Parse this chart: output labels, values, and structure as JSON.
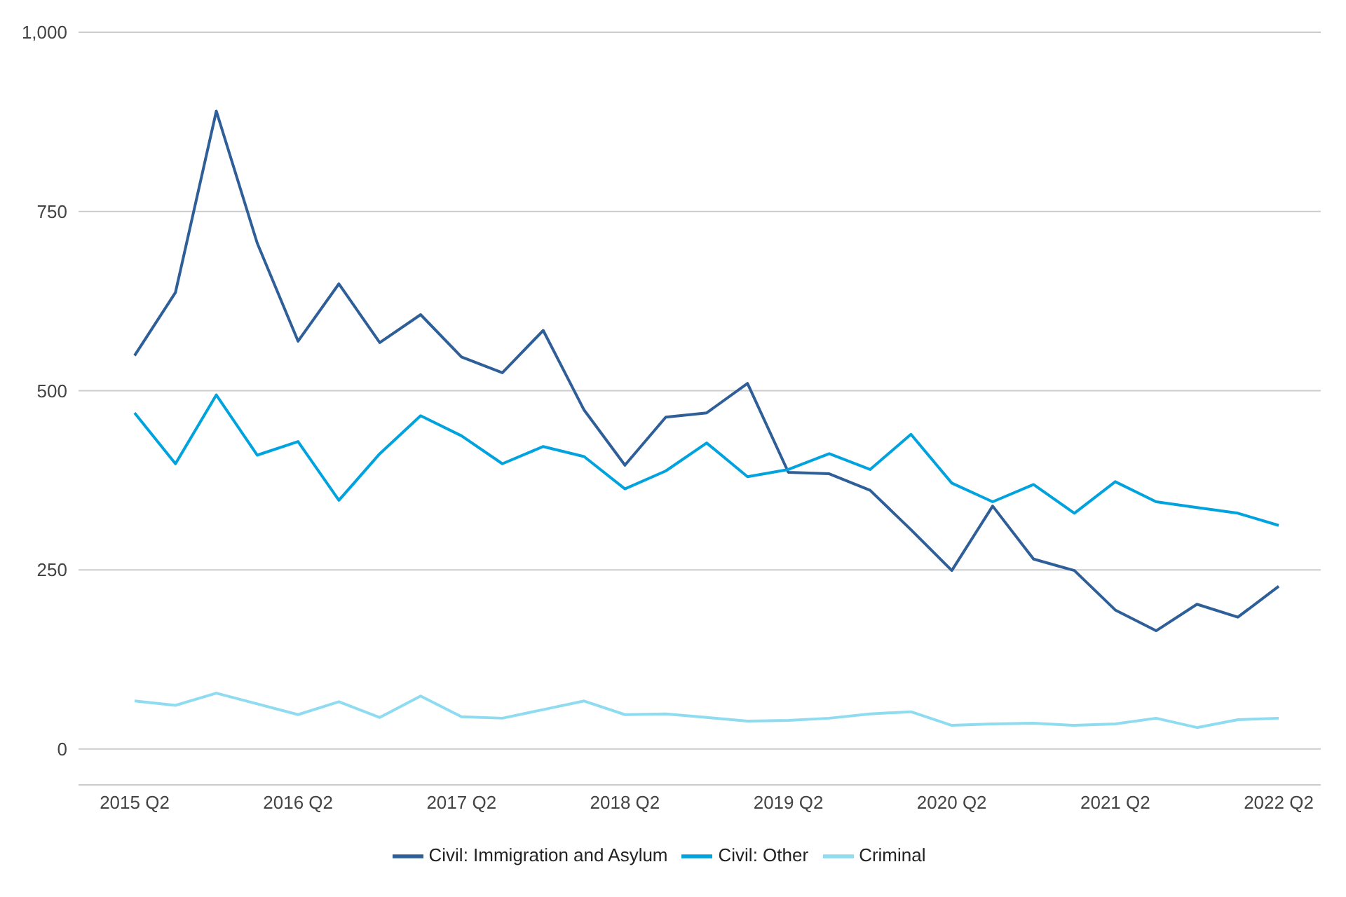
{
  "chart_data": {
    "type": "line",
    "categories": [
      "2015 Q2",
      null,
      null,
      null,
      "2016 Q2",
      null,
      null,
      null,
      "2017 Q2",
      null,
      null,
      null,
      "2018 Q2",
      null,
      null,
      null,
      "2019 Q2",
      null,
      null,
      null,
      "2020 Q2",
      null,
      null,
      null,
      "2021 Q2",
      null,
      null,
      null,
      "2022 Q2"
    ],
    "series": [
      {
        "name": "Civil: Immigration and Asylum",
        "color": "#2f5f98",
        "values": [
          549,
          637,
          890,
          706,
          569,
          649,
          567,
          606,
          547,
          525,
          584,
          473,
          396,
          463,
          469,
          510,
          386,
          384,
          361,
          306,
          249,
          339,
          265,
          249,
          194,
          165,
          202,
          184,
          227
        ]
      },
      {
        "name": "Civil: Other",
        "color": "#00a3de",
        "values": [
          469,
          398,
          494,
          410,
          429,
          347,
          412,
          465,
          437,
          398,
          422,
          408,
          363,
          388,
          427,
          380,
          390,
          412,
          390,
          439,
          371,
          345,
          369,
          329,
          373,
          345,
          337,
          329,
          312
        ]
      },
      {
        "name": "Criminal",
        "color": "#8fdcf1",
        "values": [
          67,
          61,
          78,
          63,
          48,
          66,
          44,
          74,
          45,
          43,
          55,
          67,
          48,
          49,
          44,
          39,
          40,
          43,
          49,
          52,
          33,
          35,
          36,
          33,
          35,
          43,
          30,
          41,
          43
        ]
      }
    ],
    "ylim": [
      -50,
      1000
    ],
    "yticks": [
      0,
      250,
      500,
      750,
      {
        "value": 1000,
        "label": "1,000"
      }
    ],
    "grid": "y",
    "legend": "bottom",
    "marker": "none",
    "line_style": "solid"
  }
}
